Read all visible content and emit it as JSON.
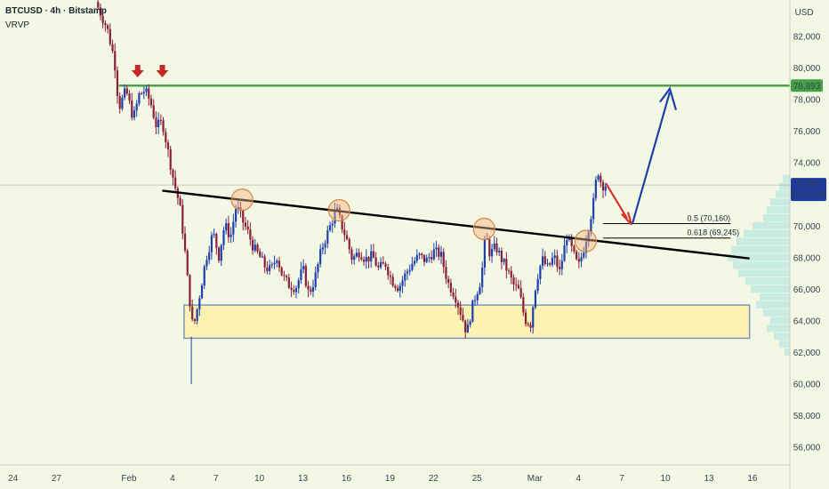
{
  "header": {
    "symbol_line": "BTCUSD · 4h · Bitstamp",
    "indicator": "VRVP"
  },
  "axis_unit": "USD",
  "colors": {
    "background": "#f3f8e4",
    "bull": "#1e3fae",
    "bear": "#8a1f3a",
    "resistance": "#43a047",
    "price_label": "#1d3b9a",
    "trendline": "#000000",
    "zone_fill": "#fbf2b4",
    "zone_border": "#7f96b8",
    "arrow_red": "#d9302c",
    "arrow_blue": "#1f3fa8",
    "marker_red": "#c62828",
    "circle_fill": "#f5b482",
    "vrvp": "#7ed3dd"
  },
  "chart_data": {
    "type": "candlestick",
    "symbol": "BTCUSD",
    "timeframe": "4h",
    "exchange": "Bitstamp",
    "ylim": [
      55100,
      84200
    ],
    "y_ticks": [
      56000,
      58000,
      60000,
      62000,
      64000,
      66000,
      68000,
      70000,
      72000,
      74000,
      76000,
      78000,
      80000,
      82000
    ],
    "y_tick_labels": [
      "56,000",
      "58,000",
      "60,000",
      "62,000",
      "64,000",
      "66,000",
      "68,000",
      "70,000",
      "72,000",
      "74,000",
      "76,000",
      "78,000",
      "80,000",
      "82,000"
    ],
    "x_ticks": [
      {
        "day": -7,
        "label": "24"
      },
      {
        "day": -4,
        "label": "27"
      },
      {
        "day": 1,
        "label": "Feb"
      },
      {
        "day": 4,
        "label": "4"
      },
      {
        "day": 7,
        "label": "7"
      },
      {
        "day": 10,
        "label": "10"
      },
      {
        "day": 13,
        "label": "13"
      },
      {
        "day": 16,
        "label": "16"
      },
      {
        "day": 19,
        "label": "19"
      },
      {
        "day": 22,
        "label": "22"
      },
      {
        "day": 25,
        "label": "25"
      },
      {
        "day": 29,
        "label": "Mar"
      },
      {
        "day": 32,
        "label": "4"
      },
      {
        "day": 35,
        "label": "7"
      },
      {
        "day": 38,
        "label": "10"
      },
      {
        "day": 41,
        "label": "13"
      },
      {
        "day": 44,
        "label": "16"
      },
      {
        "day": 47,
        "label": "19"
      }
    ],
    "price_path": [
      [
        -1.3,
        84200
      ],
      [
        -0.5,
        82500
      ],
      [
        0,
        80500
      ],
      [
        0.3,
        77500
      ],
      [
        0.8,
        78600
      ],
      [
        1.3,
        76800
      ],
      [
        1.7,
        78300
      ],
      [
        2.1,
        78600
      ],
      [
        2.5,
        77800
      ],
      [
        2.9,
        76300
      ],
      [
        3.3,
        76600
      ],
      [
        3.7,
        74700
      ],
      [
        4.1,
        72800
      ],
      [
        4.5,
        71300
      ],
      [
        4.8,
        69000
      ],
      [
        5.1,
        66000
      ],
      [
        5.4,
        63600
      ],
      [
        5.6,
        64200
      ],
      [
        5.9,
        65800
      ],
      [
        6.3,
        67900
      ],
      [
        6.8,
        69600
      ],
      [
        7.2,
        68100
      ],
      [
        7.6,
        70100
      ],
      [
        8.0,
        69300
      ],
      [
        8.4,
        71300
      ],
      [
        8.8,
        70400
      ],
      [
        9.2,
        69600
      ],
      [
        9.6,
        68600
      ],
      [
        10.0,
        68100
      ],
      [
        10.4,
        67400
      ],
      [
        10.8,
        67200
      ],
      [
        11.2,
        68100
      ],
      [
        11.6,
        66800
      ],
      [
        12.0,
        66300
      ],
      [
        12.5,
        66100
      ],
      [
        13.0,
        67300
      ],
      [
        13.4,
        65700
      ],
      [
        13.8,
        66600
      ],
      [
        14.3,
        68600
      ],
      [
        14.8,
        69800
      ],
      [
        15.3,
        71100
      ],
      [
        15.6,
        70200
      ],
      [
        16.0,
        69200
      ],
      [
        16.4,
        67900
      ],
      [
        16.9,
        68400
      ],
      [
        17.3,
        67900
      ],
      [
        17.8,
        68100
      ],
      [
        18.2,
        67300
      ],
      [
        18.7,
        67600
      ],
      [
        19.1,
        66600
      ],
      [
        19.6,
        66100
      ],
      [
        20.1,
        67000
      ],
      [
        20.5,
        67600
      ],
      [
        21.0,
        68100
      ],
      [
        21.5,
        67800
      ],
      [
        22.0,
        68400
      ],
      [
        22.5,
        68200
      ],
      [
        23.0,
        66400
      ],
      [
        23.5,
        65600
      ],
      [
        24.0,
        64200
      ],
      [
        24.3,
        63200
      ],
      [
        24.6,
        64600
      ],
      [
        24.9,
        65600
      ],
      [
        25.3,
        66700
      ],
      [
        25.6,
        69500
      ],
      [
        25.9,
        68200
      ],
      [
        26.3,
        68700
      ],
      [
        26.7,
        67900
      ],
      [
        27.1,
        67200
      ],
      [
        27.5,
        66300
      ],
      [
        27.9,
        65900
      ],
      [
        28.3,
        64100
      ],
      [
        28.7,
        63800
      ],
      [
        29.1,
        66600
      ],
      [
        29.5,
        67900
      ],
      [
        29.9,
        67300
      ],
      [
        30.3,
        68100
      ],
      [
        30.7,
        67100
      ],
      [
        31.2,
        69400
      ],
      [
        31.7,
        68100
      ],
      [
        32.0,
        67400
      ],
      [
        32.4,
        68700
      ],
      [
        32.8,
        70400
      ],
      [
        33.1,
        71800
      ],
      [
        33.3,
        73700
      ],
      [
        33.6,
        72600
      ],
      [
        33.9,
        72597
      ]
    ],
    "current_price": {
      "value": 72597,
      "label": "72,597",
      "countdown": "01:07:12"
    },
    "resistance": {
      "value": 78893,
      "label": "78,893"
    },
    "fib_levels": [
      {
        "level": "0.5",
        "value": 70160,
        "label": "0.5 (70,160)"
      },
      {
        "level": "0.618",
        "value": 69245,
        "label": "0.618 (69,245)"
      }
    ],
    "trendline": [
      {
        "day": 3.3,
        "price": 72240
      },
      {
        "day": 43.8,
        "price": 67950
      }
    ],
    "support_zone": {
      "from_day": 4.8,
      "to_day": 43.8,
      "low": 62900,
      "high": 65000
    },
    "touch_points": [
      {
        "day": 8.8,
        "price": 71670
      },
      {
        "day": 15.5,
        "price": 71000
      },
      {
        "day": 25.5,
        "price": 69820
      },
      {
        "day": 32.5,
        "price": 69050
      }
    ],
    "projected_path": [
      {
        "day": 33.9,
        "price": 72700
      },
      {
        "day": 35.6,
        "price": 70150
      },
      {
        "day": 38.3,
        "price": 78700
      }
    ],
    "rejection_markers": [
      {
        "day": 1.6,
        "price": 79700
      },
      {
        "day": 3.3,
        "price": 79700
      }
    ],
    "volume_profile": [
      [
        62000,
        6
      ],
      [
        62500,
        12
      ],
      [
        63000,
        18
      ],
      [
        63500,
        26
      ],
      [
        64000,
        22
      ],
      [
        64500,
        30
      ],
      [
        65000,
        38
      ],
      [
        65500,
        34
      ],
      [
        66000,
        44
      ],
      [
        66500,
        50
      ],
      [
        67000,
        58
      ],
      [
        67500,
        64
      ],
      [
        68000,
        70
      ],
      [
        68500,
        66
      ],
      [
        69000,
        60
      ],
      [
        69500,
        52
      ],
      [
        70000,
        42
      ],
      [
        70500,
        30
      ],
      [
        71000,
        26
      ],
      [
        71500,
        22
      ],
      [
        72000,
        16
      ],
      [
        72500,
        12
      ],
      [
        73000,
        8
      ]
    ]
  }
}
